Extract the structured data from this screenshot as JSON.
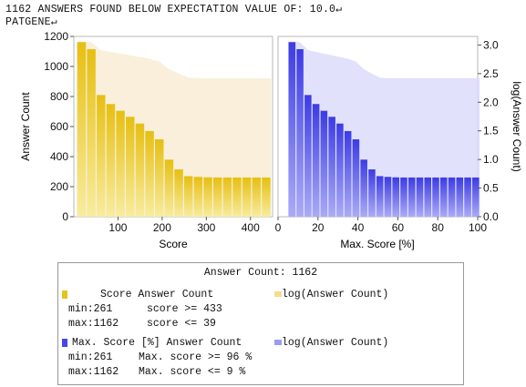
{
  "header": {
    "line1": "1162 ANSWERS FOUND BELOW EXPECTATION VALUE OF: 10.0↵",
    "line2": "PATGENE↵"
  },
  "colors": {
    "score_bar": "#e8c21a",
    "score_bar_light": "#f7e79b",
    "score_area": "#f8ecd3",
    "maxscore_bar": "#4747e6",
    "maxscore_bar_light": "#a7a7f7",
    "maxscore_area": "#dcdcfb"
  },
  "chart_data": [
    {
      "type": "bar",
      "name": "score-histogram",
      "xlabel": "Score",
      "ylabel": "Answer Count",
      "xlim": [
        0,
        450
      ],
      "ylim": [
        0,
        1200
      ],
      "xticks": [
        "100",
        "200",
        "300",
        "400"
      ],
      "yticks": [
        "0",
        "200",
        "400",
        "600",
        "800",
        "1000",
        "1200"
      ],
      "bar_width": 22,
      "x": [
        17.5,
        39.5,
        61.5,
        83.5,
        105.5,
        127.5,
        149.5,
        171.5,
        193.5,
        215.5,
        237.5,
        259.5,
        281.5,
        303.5,
        325.5,
        347.5,
        369.5,
        391.5,
        413.5,
        435.5
      ],
      "values": [
        1162,
        1115,
        810,
        750,
        705,
        665,
        620,
        570,
        515,
        380,
        315,
        270,
        265,
        262,
        261,
        261,
        261,
        261,
        261,
        261
      ],
      "log_area": {
        "x": [
          6.5,
          17.5,
          39.5,
          61.5,
          83.5,
          105.5,
          127.5,
          149.5,
          171.5,
          193.5,
          215.5,
          237.5,
          259.5,
          281.5,
          303.5,
          325.5,
          347.5,
          369.5,
          391.5,
          413.5,
          435.5,
          446.5
        ],
        "values": [
          3.06,
          3.06,
          3.05,
          2.91,
          2.88,
          2.85,
          2.82,
          2.79,
          2.76,
          2.71,
          2.58,
          2.5,
          2.43,
          2.42,
          2.42,
          2.42,
          2.42,
          2.42,
          2.42,
          2.42,
          2.42,
          2.42
        ]
      }
    },
    {
      "type": "bar",
      "name": "max-score-histogram",
      "xlabel": "Max. Score [%]",
      "ylabel": "log(Answer Count)",
      "xlim": [
        0,
        100
      ],
      "ylim": [
        0,
        3.15
      ],
      "xticks": [
        "0",
        "20",
        "40",
        "60",
        "80",
        "100"
      ],
      "yticks": [
        "0.0",
        "0.5",
        "1.0",
        "1.5",
        "2.0",
        "2.5",
        "3.0"
      ],
      "bar_width": 4,
      "x": [
        7,
        11,
        15,
        19,
        23,
        27,
        31,
        35,
        39,
        43,
        47,
        51,
        55,
        59,
        63,
        67,
        71,
        75,
        79,
        83,
        87,
        91,
        95,
        99
      ],
      "values": [
        1162,
        1115,
        810,
        750,
        705,
        665,
        620,
        570,
        515,
        380,
        315,
        270,
        265,
        262,
        261,
        261,
        261,
        261,
        261,
        261,
        261,
        261,
        261,
        261
      ],
      "log_area": {
        "x": [
          5,
          7,
          11,
          15,
          19,
          23,
          27,
          31,
          35,
          39,
          43,
          47,
          51,
          55,
          59,
          63,
          67,
          71,
          75,
          79,
          83,
          87,
          91,
          95,
          99,
          101
        ],
        "values": [
          3.06,
          3.06,
          3.05,
          2.91,
          2.88,
          2.85,
          2.82,
          2.79,
          2.76,
          2.71,
          2.58,
          2.5,
          2.43,
          2.42,
          2.42,
          2.42,
          2.42,
          2.42,
          2.42,
          2.42,
          2.42,
          2.42,
          2.42,
          2.42,
          2.42,
          2.42
        ]
      }
    }
  ],
  "legend": {
    "title": "Answer Count: 1162",
    "score": {
      "label": "Score Answer Count",
      "log_label": "log(Answer Count)",
      "min_label": "min:261",
      "min_cond": "score >= 433",
      "max_label": "max:1162",
      "max_cond": "score <= 39"
    },
    "maxscore": {
      "label": "Max. Score [%] Answer Count",
      "log_label": "log(Answer Count)",
      "min_label": "min:261",
      "min_cond": "Max. score >= 96 %",
      "max_label": "max:1162",
      "max_cond": "Max. score <= 9  %"
    }
  }
}
